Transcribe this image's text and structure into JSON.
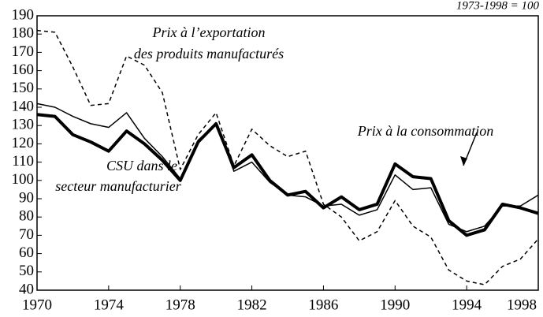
{
  "chart_data": {
    "type": "line",
    "annotation": "1973-1998 = 100",
    "x": [
      1970,
      1971,
      1972,
      1973,
      1974,
      1975,
      1976,
      1977,
      1978,
      1979,
      1980,
      1981,
      1982,
      1983,
      1984,
      1985,
      1986,
      1987,
      1988,
      1989,
      1990,
      1991,
      1992,
      1993,
      1994,
      1995,
      1996,
      1997,
      1998
    ],
    "series": [
      {
        "name": "Prix à l’exportation des produits manufacturés",
        "color": "#000",
        "dash": true,
        "width": 1.5,
        "values": [
          182,
          181,
          162,
          141,
          142,
          168,
          163,
          148,
          106,
          125,
          137,
          108,
          128,
          119,
          113,
          116,
          87,
          80,
          67,
          72,
          89,
          75,
          69,
          51,
          45,
          43,
          53,
          57,
          68
        ]
      },
      {
        "name": "Prix à la consommation",
        "color": "#000",
        "dash": false,
        "width": 1.5,
        "values": [
          142,
          140,
          135,
          131,
          129,
          137,
          123,
          113,
          101,
          122,
          131,
          105,
          110,
          99,
          92,
          91,
          86,
          87,
          81,
          84,
          103,
          95,
          96,
          76,
          72,
          75,
          86,
          86,
          92
        ]
      },
      {
        "name": "CSU dans le secteur manufacturier",
        "color": "#000",
        "dash": false,
        "width": 4,
        "values": [
          136,
          135,
          125,
          121,
          116,
          127,
          120,
          111,
          100,
          121,
          131,
          107,
          114,
          100,
          92,
          94,
          85,
          91,
          84,
          87,
          109,
          102,
          101,
          78,
          70,
          73,
          87,
          85,
          82
        ]
      }
    ],
    "xlim": [
      1970,
      1998
    ],
    "xticks": [
      1970,
      1974,
      1978,
      1982,
      1986,
      1990,
      1994,
      1998
    ],
    "ylim": [
      40,
      190
    ],
    "yticks": [
      40,
      50,
      60,
      70,
      80,
      90,
      100,
      110,
      120,
      130,
      140,
      150,
      160,
      170,
      180,
      190
    ],
    "grid": false
  }
}
